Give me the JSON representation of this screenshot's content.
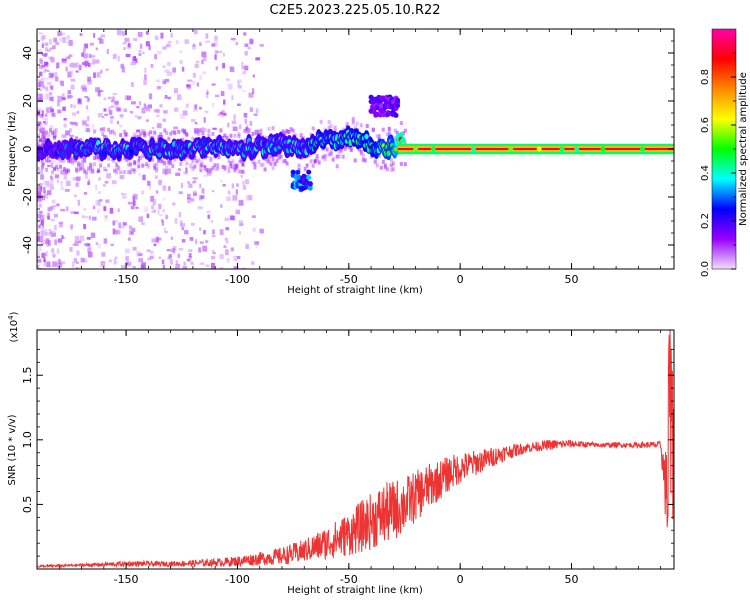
{
  "title": "C2E5.2023.225.05.10.R22",
  "chart_data": [
    {
      "type": "heatmap",
      "xlabel": "Height of straight line (km)",
      "ylabel": "Frequency (Hz)",
      "xlim": [
        -190,
        96
      ],
      "ylim": [
        -50,
        50
      ],
      "xticks": [
        -150,
        -100,
        -50,
        0,
        50
      ],
      "xtick_labels": [
        "-150",
        "-100",
        "-50",
        "0",
        "50"
      ],
      "yticks": [
        -40,
        -20,
        0,
        20,
        40
      ],
      "ytick_labels": [
        "-40",
        "-20",
        "0",
        "20",
        "40"
      ],
      "colorbar": {
        "label": "Normalized spectral amplitude",
        "range": [
          0,
          1
        ],
        "ticks": [
          0.0,
          0.2,
          0.4,
          0.6,
          0.8
        ],
        "tick_labels": [
          "0.0",
          "0.2",
          "0.4",
          "0.6",
          "0.8"
        ],
        "colormap": [
          "#f0e0ff",
          "#9900ff",
          "#0000ff",
          "#00ffff",
          "#00ff00",
          "#ffff00",
          "#ff8800",
          "#ff0000",
          "#ff00aa"
        ]
      },
      "series": [
        {
          "x": [
            -188,
            -180,
            -170,
            -160,
            -150,
            -140,
            -130,
            -120,
            -110,
            -100,
            -90,
            -80,
            -75,
            -70,
            -65,
            -60,
            -55,
            -50,
            -45,
            -40,
            -35,
            -30,
            -27,
            -25,
            -20,
            -15,
            -10,
            -5,
            0,
            5,
            10,
            20,
            30,
            40,
            50,
            60,
            70,
            80,
            90,
            95
          ],
          "y": [
            0,
            0,
            0,
            0,
            0,
            0,
            0,
            0,
            1,
            0,
            1,
            2,
            1,
            0,
            3,
            4,
            2,
            5,
            4,
            2,
            0,
            1,
            3,
            2,
            1,
            0,
            0,
            0,
            0,
            0,
            0,
            0,
            0,
            0,
            0,
            0,
            0,
            0,
            0,
            0
          ],
          "amplitude": [
            0.3,
            0.3,
            0.35,
            0.35,
            0.35,
            0.35,
            0.35,
            0.35,
            0.35,
            0.35,
            0.35,
            0.35,
            0.35,
            0.35,
            0.4,
            0.4,
            0.4,
            0.4,
            0.45,
            0.45,
            0.5,
            0.5,
            0.75,
            0.75,
            0.9,
            0.9,
            0.9,
            0.9,
            0.9,
            0.9,
            0.9,
            0.9,
            0.9,
            0.9,
            0.9,
            0.9,
            0.9,
            0.9,
            0.9,
            0.9
          ]
        }
      ],
      "features": [
        {
          "x_range": [
            -75,
            -67
          ],
          "y": -13,
          "amplitude": 0.35
        },
        {
          "x_range": [
            -40,
            -28
          ],
          "y": 18,
          "amplitude": 0.2
        },
        {
          "x_range": [
            -28,
            96
          ],
          "y": 0,
          "amplitude": 0.9
        }
      ]
    },
    {
      "type": "line",
      "xlabel": "Height of straight line (km)",
      "ylabel": "SNR (10 * v/v)",
      "y_multiplier_label": "(x10",
      "y_multiplier_exponent": "4",
      "y_multiplier_close": ")",
      "xlim": [
        -190,
        96
      ],
      "ylim": [
        0,
        1.85
      ],
      "xticks": [
        -150,
        -100,
        -50,
        0,
        50
      ],
      "xtick_labels": [
        "-150",
        "-100",
        "-50",
        "0",
        "50"
      ],
      "yticks": [
        0.5,
        1.0,
        1.5
      ],
      "ytick_labels": [
        "0.5",
        "1.0",
        "1.5"
      ],
      "series": [
        {
          "color": "#ee3333",
          "x": [
            -190,
            -170,
            -150,
            -130,
            -110,
            -100,
            -90,
            -80,
            -70,
            -60,
            -50,
            -45,
            -40,
            -35,
            -30,
            -25,
            -20,
            -15,
            -10,
            -5,
            0,
            10,
            20,
            30,
            40,
            50,
            60,
            70,
            80,
            90,
            94,
            95
          ],
          "y": [
            0.02,
            0.03,
            0.04,
            0.04,
            0.05,
            0.06,
            0.08,
            0.1,
            0.14,
            0.2,
            0.27,
            0.32,
            0.37,
            0.42,
            0.45,
            0.5,
            0.56,
            0.63,
            0.68,
            0.74,
            0.78,
            0.84,
            0.9,
            0.94,
            0.96,
            0.97,
            0.96,
            0.96,
            0.96,
            0.96,
            0.4,
            0.3
          ],
          "noise": [
            0.01,
            0.01,
            0.02,
            0.02,
            0.03,
            0.04,
            0.05,
            0.07,
            0.09,
            0.13,
            0.17,
            0.2,
            0.22,
            0.24,
            0.24,
            0.22,
            0.2,
            0.18,
            0.16,
            0.14,
            0.12,
            0.09,
            0.06,
            0.04,
            0.04,
            0.03,
            0.02,
            0.02,
            0.02,
            0.03,
            0.5,
            0.5
          ]
        }
      ]
    }
  ]
}
